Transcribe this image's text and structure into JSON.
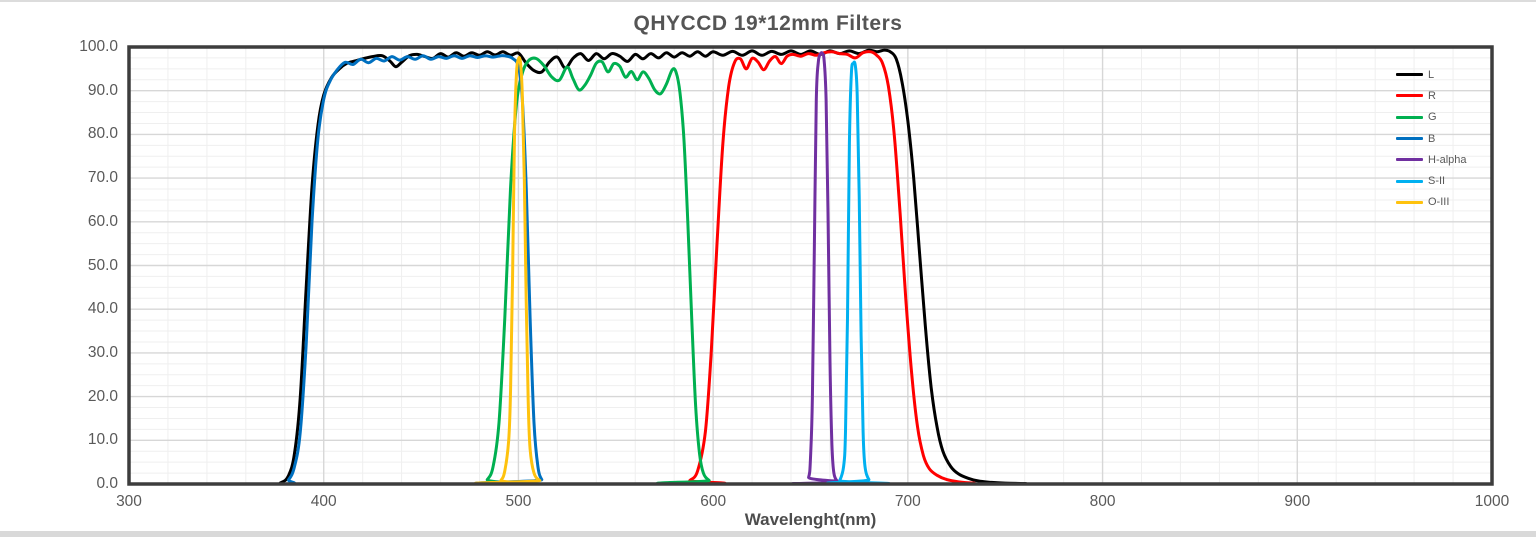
{
  "chart_data": {
    "type": "line",
    "title": "QHYCCD 19*12mm Filters",
    "xlabel": "Wavelenght(nm)",
    "ylabel": "",
    "xlim": [
      300,
      1000
    ],
    "ylim": [
      0,
      100
    ],
    "x_tick_labels": [
      "300",
      "400",
      "500",
      "600",
      "700",
      "800",
      "900",
      "1000"
    ],
    "y_tick_labels": [
      "0.0",
      "10.0",
      "20.0",
      "30.0",
      "40.0",
      "50.0",
      "60.0",
      "70.0",
      "80.0",
      "90.0",
      "100.0"
    ],
    "x_minor_step_nm": 20,
    "y_minor_step": 2.5,
    "grid": "on",
    "legend_position": "inside-top-right",
    "series": [
      {
        "name": "L",
        "color": "#000000",
        "points": [
          [
            300,
            0
          ],
          [
            370,
            0
          ],
          [
            378,
            0.3
          ],
          [
            382,
            2
          ],
          [
            385,
            7
          ],
          [
            388,
            20
          ],
          [
            391,
            45
          ],
          [
            394,
            68
          ],
          [
            397,
            82
          ],
          [
            400,
            89
          ],
          [
            404,
            93
          ],
          [
            408,
            95
          ],
          [
            412,
            96.3
          ],
          [
            416,
            96.8
          ],
          [
            420,
            97.3
          ],
          [
            425,
            97.8
          ],
          [
            430,
            98
          ],
          [
            434,
            96.8
          ],
          [
            437,
            95.5
          ],
          [
            440,
            96.5
          ],
          [
            444,
            98
          ],
          [
            448,
            98.3
          ],
          [
            452,
            97.8
          ],
          [
            456,
            97.4
          ],
          [
            460,
            98.5
          ],
          [
            464,
            97.7
          ],
          [
            468,
            98.7
          ],
          [
            472,
            97.9
          ],
          [
            476,
            98.7
          ],
          [
            480,
            98.1
          ],
          [
            484,
            98.9
          ],
          [
            488,
            98.2
          ],
          [
            492,
            98.9
          ],
          [
            496,
            98.1
          ],
          [
            500,
            98.6
          ],
          [
            504,
            96.3
          ],
          [
            508,
            94.6
          ],
          [
            512,
            94.3
          ],
          [
            516,
            96.6
          ],
          [
            520,
            97.7
          ],
          [
            524,
            95.2
          ],
          [
            528,
            97.4
          ],
          [
            532,
            98.5
          ],
          [
            536,
            96.9
          ],
          [
            540,
            98.5
          ],
          [
            544,
            97.3
          ],
          [
            548,
            98.5
          ],
          [
            552,
            97.9
          ],
          [
            556,
            96.7
          ],
          [
            560,
            98.3
          ],
          [
            564,
            97.3
          ],
          [
            568,
            98.5
          ],
          [
            572,
            97.5
          ],
          [
            576,
            98.7
          ],
          [
            580,
            97.7
          ],
          [
            584,
            98.7
          ],
          [
            588,
            97.9
          ],
          [
            592,
            98.9
          ],
          [
            596,
            97.9
          ],
          [
            600,
            98.9
          ],
          [
            605,
            98.1
          ],
          [
            610,
            99
          ],
          [
            615,
            98.1
          ],
          [
            620,
            99.1
          ],
          [
            625,
            98.1
          ],
          [
            630,
            99
          ],
          [
            635,
            98.3
          ],
          [
            640,
            99.1
          ],
          [
            645,
            98.3
          ],
          [
            650,
            99.1
          ],
          [
            655,
            98.3
          ],
          [
            660,
            99.1
          ],
          [
            665,
            98.5
          ],
          [
            670,
            99.1
          ],
          [
            675,
            98.5
          ],
          [
            680,
            99.3
          ],
          [
            684,
            98.9
          ],
          [
            688,
            99.3
          ],
          [
            691,
            98.9
          ],
          [
            694,
            97.3
          ],
          [
            697,
            92
          ],
          [
            700,
            83
          ],
          [
            703,
            70
          ],
          [
            706,
            53
          ],
          [
            709,
            36
          ],
          [
            712,
            22
          ],
          [
            715,
            13
          ],
          [
            718,
            7.5
          ],
          [
            722,
            4
          ],
          [
            726,
            2.3
          ],
          [
            731,
            1.3
          ],
          [
            736,
            0.7
          ],
          [
            742,
            0.4
          ],
          [
            750,
            0.2
          ],
          [
            760,
            0.1
          ],
          [
            780,
            0
          ],
          [
            1000,
            0
          ]
        ]
      },
      {
        "name": "R",
        "color": "#ff0000",
        "points": [
          [
            300,
            0
          ],
          [
            584,
            0
          ],
          [
            588,
            0.8
          ],
          [
            592,
            3
          ],
          [
            596,
            12
          ],
          [
            599,
            30
          ],
          [
            602,
            55
          ],
          [
            605,
            78
          ],
          [
            608,
            91
          ],
          [
            611,
            96.5
          ],
          [
            614,
            97.3
          ],
          [
            617,
            95
          ],
          [
            620,
            97.4
          ],
          [
            623,
            96.6
          ],
          [
            626,
            94.8
          ],
          [
            629,
            96.8
          ],
          [
            632,
            97.8
          ],
          [
            635,
            96.2
          ],
          [
            638,
            97.9
          ],
          [
            641,
            98.3
          ],
          [
            645,
            97.9
          ],
          [
            649,
            98.5
          ],
          [
            653,
            98.1
          ],
          [
            657,
            98.7
          ],
          [
            661,
            98.9
          ],
          [
            665,
            98.5
          ],
          [
            669,
            98.3
          ],
          [
            673,
            97.5
          ],
          [
            677,
            98.7
          ],
          [
            681,
            98.9
          ],
          [
            684,
            98.1
          ],
          [
            687,
            96.3
          ],
          [
            690,
            91
          ],
          [
            693,
            80
          ],
          [
            696,
            62
          ],
          [
            699,
            42
          ],
          [
            702,
            25
          ],
          [
            705,
            13
          ],
          [
            708,
            6.5
          ],
          [
            711,
            3.5
          ],
          [
            715,
            2
          ],
          [
            720,
            1
          ],
          [
            726,
            0.5
          ],
          [
            734,
            0.2
          ],
          [
            745,
            0
          ],
          [
            1000,
            0
          ]
        ]
      },
      {
        "name": "G",
        "color": "#00b050",
        "points": [
          [
            300,
            0
          ],
          [
            480,
            0
          ],
          [
            484,
            1
          ],
          [
            487,
            4
          ],
          [
            490,
            14
          ],
          [
            493,
            38
          ],
          [
            496,
            68
          ],
          [
            499,
            87
          ],
          [
            502,
            94
          ],
          [
            505,
            96.8
          ],
          [
            509,
            97.4
          ],
          [
            513,
            95.8
          ],
          [
            517,
            93.2
          ],
          [
            521,
            92.4
          ],
          [
            525,
            95.4
          ],
          [
            528,
            92.8
          ],
          [
            531,
            90.2
          ],
          [
            534,
            91.2
          ],
          [
            537,
            93.5
          ],
          [
            540,
            96.3
          ],
          [
            543,
            96.6
          ],
          [
            546,
            94.3
          ],
          [
            549,
            96.2
          ],
          [
            552,
            95.6
          ],
          [
            555,
            93.1
          ],
          [
            558,
            94.4
          ],
          [
            561,
            92.5
          ],
          [
            564,
            94.3
          ],
          [
            567,
            92.8
          ],
          [
            570,
            90.2
          ],
          [
            573,
            89.3
          ],
          [
            576,
            91.5
          ],
          [
            579,
            94.8
          ],
          [
            581,
            94.2
          ],
          [
            583,
            89.5
          ],
          [
            585,
            79
          ],
          [
            587,
            60
          ],
          [
            589,
            38
          ],
          [
            591,
            18
          ],
          [
            593,
            7
          ],
          [
            595,
            2.5
          ],
          [
            598,
            0.8
          ],
          [
            602,
            0
          ],
          [
            1000,
            0
          ]
        ]
      },
      {
        "name": "B",
        "color": "#0070c0",
        "points": [
          [
            300,
            0
          ],
          [
            378,
            0
          ],
          [
            382,
            1
          ],
          [
            385,
            4
          ],
          [
            388,
            12
          ],
          [
            391,
            32
          ],
          [
            394,
            60
          ],
          [
            397,
            79
          ],
          [
            400,
            88
          ],
          [
            403,
            92
          ],
          [
            407,
            94.8
          ],
          [
            411,
            96.5
          ],
          [
            415,
            96
          ],
          [
            419,
            97.2
          ],
          [
            423,
            96.4
          ],
          [
            427,
            97.4
          ],
          [
            431,
            96.8
          ],
          [
            435,
            97.8
          ],
          [
            439,
            97
          ],
          [
            443,
            97.8
          ],
          [
            447,
            97.2
          ],
          [
            451,
            98
          ],
          [
            455,
            97.2
          ],
          [
            459,
            97.8
          ],
          [
            463,
            97.4
          ],
          [
            467,
            98
          ],
          [
            471,
            97.4
          ],
          [
            475,
            98
          ],
          [
            479,
            97.6
          ],
          [
            483,
            98
          ],
          [
            487,
            97.7
          ],
          [
            491,
            98
          ],
          [
            494,
            97.9
          ],
          [
            497,
            97.4
          ],
          [
            500,
            95.5
          ],
          [
            502,
            88
          ],
          [
            504,
            68
          ],
          [
            506,
            38
          ],
          [
            508,
            14
          ],
          [
            510,
            4
          ],
          [
            512,
            1
          ],
          [
            515,
            0
          ],
          [
            1000,
            0
          ]
        ]
      },
      {
        "name": "H-alpha",
        "color": "#7030a0",
        "points": [
          [
            300,
            0
          ],
          [
            646,
            0
          ],
          [
            649,
            1.5
          ],
          [
            650,
            6
          ],
          [
            651,
            20
          ],
          [
            652,
            55
          ],
          [
            653,
            88
          ],
          [
            654,
            96.5
          ],
          [
            655,
            98.3
          ],
          [
            656,
            98.6
          ],
          [
            657,
            97
          ],
          [
            658,
            88
          ],
          [
            659,
            62
          ],
          [
            660,
            28
          ],
          [
            661,
            9
          ],
          [
            662,
            2.5
          ],
          [
            664,
            0.5
          ],
          [
            666,
            0
          ],
          [
            1000,
            0
          ]
        ]
      },
      {
        "name": "S-II",
        "color": "#00b0f0",
        "points": [
          [
            300,
            0
          ],
          [
            663,
            0
          ],
          [
            665,
            0.8
          ],
          [
            667,
            4
          ],
          [
            668,
            12
          ],
          [
            669,
            38
          ],
          [
            670,
            78
          ],
          [
            671,
            94
          ],
          [
            672,
            96.2
          ],
          [
            673,
            95.8
          ],
          [
            674,
            89
          ],
          [
            675,
            66
          ],
          [
            676,
            34
          ],
          [
            677,
            12
          ],
          [
            678,
            4
          ],
          [
            680,
            1
          ],
          [
            683,
            0
          ],
          [
            1000,
            0
          ]
        ]
      },
      {
        "name": "O-III",
        "color": "#fec20e",
        "points": [
          [
            300,
            0
          ],
          [
            488,
            0
          ],
          [
            491,
            0.8
          ],
          [
            493,
            3
          ],
          [
            495,
            10
          ],
          [
            496,
            22
          ],
          [
            497,
            48
          ],
          [
            498,
            80
          ],
          [
            499,
            94
          ],
          [
            500,
            97.2
          ],
          [
            501,
            96.6
          ],
          [
            502,
            89
          ],
          [
            503,
            70
          ],
          [
            504,
            42
          ],
          [
            505,
            19
          ],
          [
            506,
            8
          ],
          [
            508,
            2.5
          ],
          [
            511,
            0.8
          ],
          [
            515,
            0
          ],
          [
            1000,
            0
          ]
        ]
      }
    ]
  },
  "colors": {
    "frame": "#3d3d3d",
    "grid_minor": "#efefef",
    "grid_major": "#d7d7d7",
    "tick_text": "#595959",
    "title_text": "#555555",
    "background": "#ffffff",
    "edge_strip": "#d9d9d9"
  }
}
